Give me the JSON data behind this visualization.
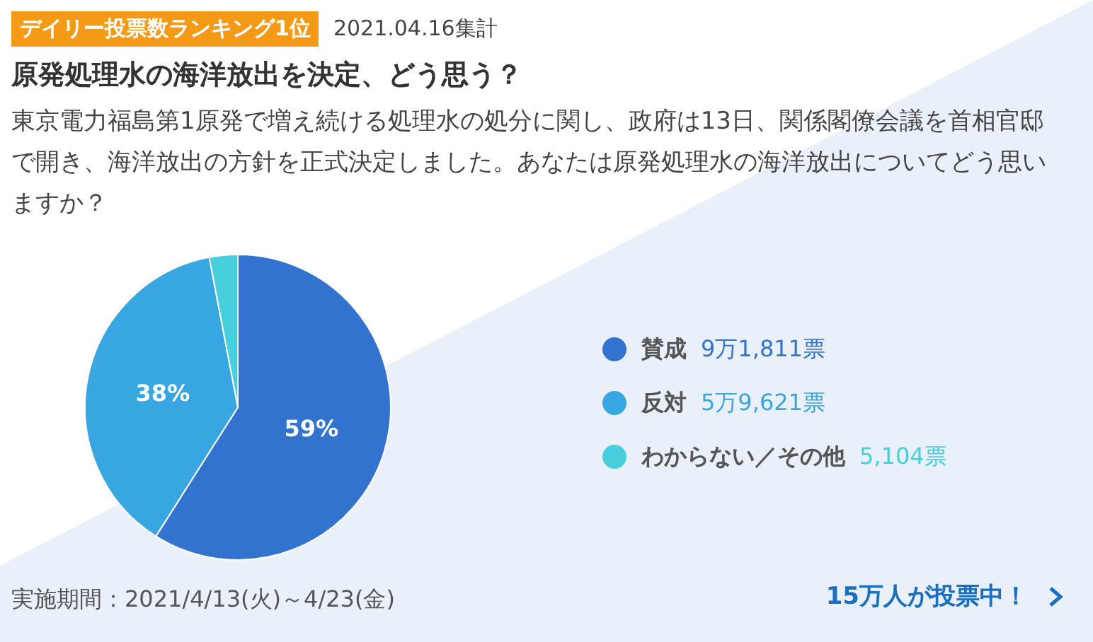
{
  "chart_data": {
    "type": "pie",
    "title": "原発処理水の海洋放出を決定、どう思う？",
    "subtitle": "東京電力福島第1原発で増え続ける処理水の処分に関し、政府は13日、関係閣僚会議を首相官邸で開き、海洋放出の方針を正式決定しました。あなたは原発処理水の海洋放出についてどう思いますか？",
    "categories": [
      "賛成",
      "反対",
      "わからない／その他"
    ],
    "values": [
      59,
      38,
      3
    ],
    "colors": [
      "#3373d0",
      "#38a6e0",
      "#48cfdd"
    ],
    "value_labels": [
      "59%",
      "38%",
      null
    ],
    "legend": "right",
    "annotations": [
      "デイリー投票数ランキング1位",
      "2021.04.16集計",
      "9万1,811票",
      "5万9,621票",
      "5,104票",
      "実施期間：2021/4/13(火)～4/23(金)",
      "15万人が投票中！"
    ]
  }
}
